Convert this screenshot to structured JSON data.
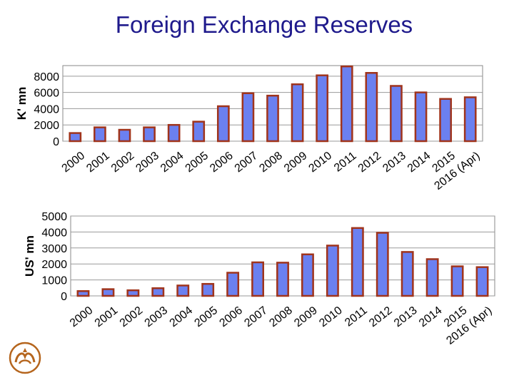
{
  "title": "Foreign Exchange Reserves",
  "colors": {
    "bar_fill": "#6b80f0",
    "bar_stroke": "#a0341c",
    "title": "#1f1a8c",
    "grid": "#9a9a9a"
  },
  "logo": {
    "icon": "central-bank-emblem-icon"
  },
  "chart_data": [
    {
      "type": "bar",
      "categories": [
        "2000",
        "2001",
        "2002",
        "2003",
        "2004",
        "2005",
        "2006",
        "2007",
        "2008",
        "2009",
        "2010",
        "2011",
        "2012",
        "2013",
        "2014",
        "2015",
        "2016 (Apr)"
      ],
      "values": [
        1000,
        1700,
        1400,
        1700,
        2000,
        2400,
        4300,
        5900,
        5600,
        7000,
        8100,
        9200,
        8400,
        6800,
        6000,
        5200,
        5400
      ],
      "title": "",
      "xlabel": "",
      "ylabel": "K' mn",
      "ylim": [
        0,
        9300
      ],
      "yticks": [
        0,
        2000,
        4000,
        6000,
        8000
      ],
      "grid": true
    },
    {
      "type": "bar",
      "categories": [
        "2000",
        "2001",
        "2002",
        "2003",
        "2004",
        "2005",
        "2006",
        "2007",
        "2008",
        "2009",
        "2010",
        "2011",
        "2012",
        "2013",
        "2014",
        "2015",
        "2016 (Apr)"
      ],
      "values": [
        300,
        420,
        350,
        480,
        650,
        750,
        1450,
        2100,
        2080,
        2600,
        3150,
        4250,
        3950,
        2750,
        2300,
        1850,
        1800
      ],
      "title": "",
      "xlabel": "",
      "ylabel": "US' mn",
      "ylim": [
        0,
        5000
      ],
      "yticks": [
        0,
        1000,
        2000,
        3000,
        4000,
        5000
      ],
      "grid": true
    }
  ]
}
